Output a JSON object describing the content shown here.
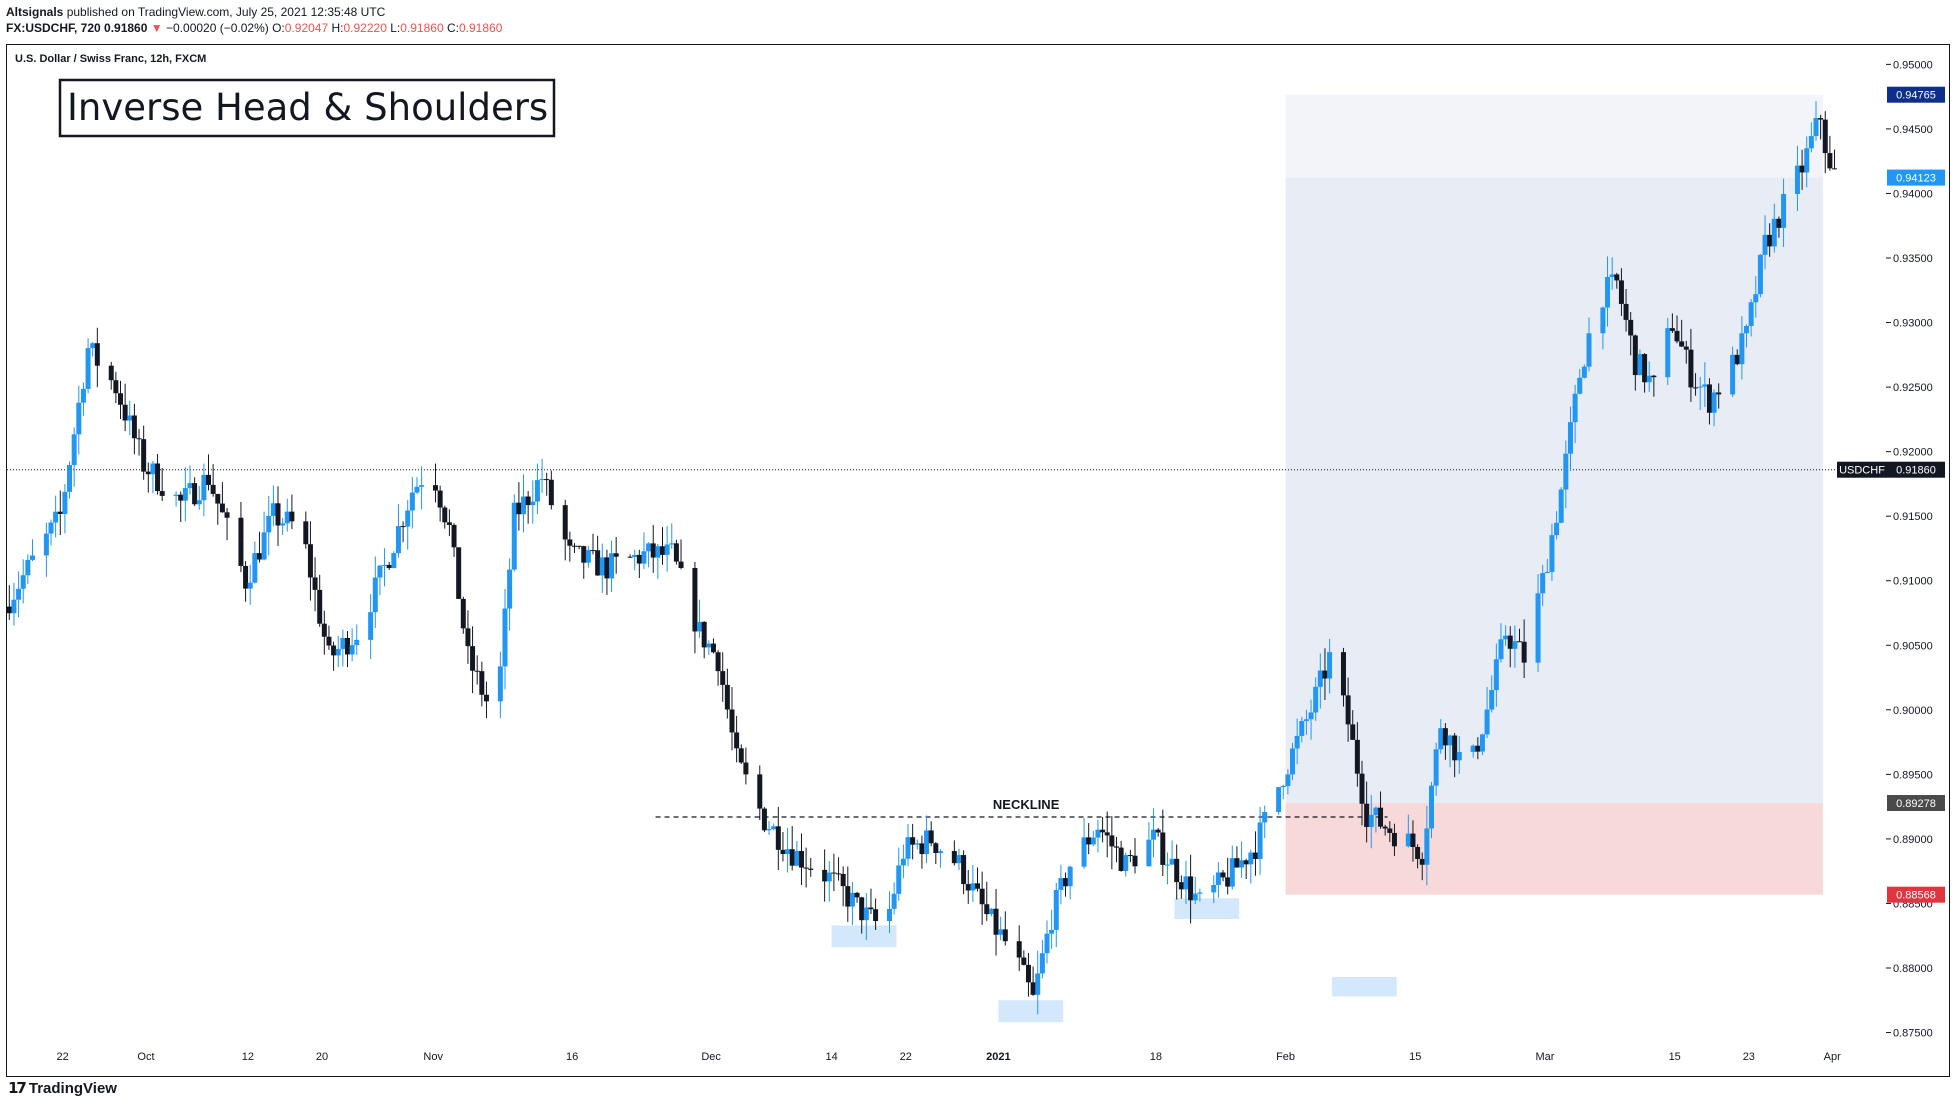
{
  "header": {
    "publisher": "Altsignals",
    "published_text": " published on TradingView.com, July 25, 2021 12:35:48 UTC",
    "symbol_line": {
      "symbol": "FX:USDCHF, 720",
      "last": "0.91860",
      "change": "−0.00020 (−0.02%)",
      "o_label": "O:",
      "o": "0.92047",
      "h_label": "H:",
      "h": "0.92220",
      "l_label": "L:",
      "l": "0.91860",
      "c_label": "C:",
      "c": "0.91860"
    }
  },
  "footer": {
    "brand": "TradingView"
  },
  "chart_data": {
    "type": "candlestick",
    "title": "U.S. Dollar / Swiss Franc, 12h, FXCM",
    "annotation_title": "Inverse Head & Shoulders",
    "neckline_label": "NECKLINE",
    "neckline_price": 0.8917,
    "ylim": [
      0.8745,
      0.9515
    ],
    "y_ticks": [
      "0.95000",
      "0.94500",
      "0.94000",
      "0.93500",
      "0.93000",
      "0.92500",
      "0.92000",
      "0.91500",
      "0.91000",
      "0.90500",
      "0.90000",
      "0.89500",
      "0.89000",
      "0.88500",
      "0.88000",
      "0.87500"
    ],
    "x_ticks": [
      {
        "label": "22",
        "date": "2020-09-22"
      },
      {
        "label": "Oct",
        "date": "2020-10-01",
        "bold": false
      },
      {
        "label": "12",
        "date": "2020-10-12"
      },
      {
        "label": "20",
        "date": "2020-10-20"
      },
      {
        "label": "Nov",
        "date": "2020-11-01"
      },
      {
        "label": "16",
        "date": "2020-11-16"
      },
      {
        "label": "Dec",
        "date": "2020-12-01"
      },
      {
        "label": "14",
        "date": "2020-12-14"
      },
      {
        "label": "22",
        "date": "2020-12-22"
      },
      {
        "label": "2021",
        "date": "2021-01-01",
        "bold": true
      },
      {
        "label": "18",
        "date": "2021-01-18"
      },
      {
        "label": "Feb",
        "date": "2021-02-01"
      },
      {
        "label": "15",
        "date": "2021-02-15"
      },
      {
        "label": "Mar",
        "date": "2021-03-01"
      },
      {
        "label": "15",
        "date": "2021-03-15"
      },
      {
        "label": "23",
        "date": "2021-03-23"
      },
      {
        "label": "Apr",
        "date": "2021-04-01"
      }
    ],
    "x_range": [
      "2020-09-16",
      "2021-04-04"
    ],
    "price_labels": {
      "target_high": "0.94765",
      "target": "0.94123",
      "current_symbol": "USDCHF",
      "current": "0.91860",
      "entry": "0.89278",
      "stop": "0.88568"
    },
    "position_box": {
      "start": "2021-02-01",
      "end": "2021-03-31",
      "entry": 0.89278,
      "stop": 0.88568,
      "target": 0.94123,
      "target_high": 0.94765
    },
    "highlights": [
      {
        "name": "left-shoulder",
        "start": "2020-12-14",
        "end": "2020-12-21",
        "low": 0.8816,
        "high": 0.8833
      },
      {
        "name": "head",
        "start": "2021-01-01",
        "end": "2021-01-08",
        "low": 0.8758,
        "high": 0.8775
      },
      {
        "name": "right-shoulder",
        "start": "2021-01-20",
        "end": "2021-01-27",
        "low": 0.8838,
        "high": 0.8854
      },
      {
        "name": "future-marker",
        "start": "2021-02-06",
        "end": "2021-02-13",
        "low": 0.8778,
        "high": 0.8793
      }
    ],
    "colors": {
      "up": "#2196f3",
      "down": "#131722",
      "target_zone": "#e8edf5",
      "target_upper_zone": "#f2f4f9",
      "stop_zone": "#f7d9da",
      "highlight": "#d4e8fb",
      "entry_label": "#4a4a4a",
      "stop_label": "#e0353f",
      "target_label": "#2196f3",
      "target_high_label": "#0d2f8c",
      "current_label": "#131722"
    },
    "price_path": [
      {
        "date": "2020-09-16",
        "price": 0.908
      },
      {
        "date": "2020-09-22",
        "price": 0.915
      },
      {
        "date": "2020-09-25",
        "price": 0.928
      },
      {
        "date": "2020-09-28",
        "price": 0.925
      },
      {
        "date": "2020-10-01",
        "price": 0.919
      },
      {
        "date": "2020-10-05",
        "price": 0.916
      },
      {
        "date": "2020-10-08",
        "price": 0.918
      },
      {
        "date": "2020-10-12",
        "price": 0.91
      },
      {
        "date": "2020-10-15",
        "price": 0.915
      },
      {
        "date": "2020-10-18",
        "price": 0.914
      },
      {
        "date": "2020-10-21",
        "price": 0.904
      },
      {
        "date": "2020-10-24",
        "price": 0.906
      },
      {
        "date": "2020-10-27",
        "price": 0.911
      },
      {
        "date": "2020-10-30",
        "price": 0.917
      },
      {
        "date": "2020-11-01",
        "price": 0.919
      },
      {
        "date": "2020-11-03",
        "price": 0.914
      },
      {
        "date": "2020-11-05",
        "price": 0.904
      },
      {
        "date": "2020-11-08",
        "price": 0.899
      },
      {
        "date": "2020-11-10",
        "price": 0.915
      },
      {
        "date": "2020-11-13",
        "price": 0.918
      },
      {
        "date": "2020-11-16",
        "price": 0.912
      },
      {
        "date": "2020-11-20",
        "price": 0.911
      },
      {
        "date": "2020-11-24",
        "price": 0.912
      },
      {
        "date": "2020-11-27",
        "price": 0.912
      },
      {
        "date": "2020-11-30",
        "price": 0.906
      },
      {
        "date": "2020-12-02",
        "price": 0.904
      },
      {
        "date": "2020-12-04",
        "price": 0.896
      },
      {
        "date": "2020-12-07",
        "price": 0.8915
      },
      {
        "date": "2020-12-10",
        "price": 0.889
      },
      {
        "date": "2020-12-14",
        "price": 0.887
      },
      {
        "date": "2020-12-18",
        "price": 0.884
      },
      {
        "date": "2020-12-20",
        "price": 0.883
      },
      {
        "date": "2020-12-22",
        "price": 0.889
      },
      {
        "date": "2020-12-25",
        "price": 0.89
      },
      {
        "date": "2020-12-28",
        "price": 0.888
      },
      {
        "date": "2020-12-31",
        "price": 0.884
      },
      {
        "date": "2021-01-03",
        "price": 0.881
      },
      {
        "date": "2021-01-05",
        "price": 0.8775
      },
      {
        "date": "2021-01-07",
        "price": 0.884
      },
      {
        "date": "2021-01-09",
        "price": 0.888
      },
      {
        "date": "2021-01-12",
        "price": 0.891
      },
      {
        "date": "2021-01-15",
        "price": 0.888
      },
      {
        "date": "2021-01-18",
        "price": 0.89
      },
      {
        "date": "2021-01-20",
        "price": 0.888
      },
      {
        "date": "2021-01-23",
        "price": 0.885
      },
      {
        "date": "2021-01-26",
        "price": 0.887
      },
      {
        "date": "2021-01-29",
        "price": 0.8895
      },
      {
        "date": "2021-02-01",
        "price": 0.895
      },
      {
        "date": "2021-02-04",
        "price": 0.9
      },
      {
        "date": "2021-02-06",
        "price": 0.904
      },
      {
        "date": "2021-02-08",
        "price": 0.899
      },
      {
        "date": "2021-02-10",
        "price": 0.892
      },
      {
        "date": "2021-02-13",
        "price": 0.8905
      },
      {
        "date": "2021-02-16",
        "price": 0.889
      },
      {
        "date": "2021-02-18",
        "price": 0.899
      },
      {
        "date": "2021-02-21",
        "price": 0.895
      },
      {
        "date": "2021-02-23",
        "price": 0.9
      },
      {
        "date": "2021-02-25",
        "price": 0.906
      },
      {
        "date": "2021-02-27",
        "price": 0.904
      },
      {
        "date": "2021-03-01",
        "price": 0.91
      },
      {
        "date": "2021-03-03",
        "price": 0.917
      },
      {
        "date": "2021-03-05",
        "price": 0.926
      },
      {
        "date": "2021-03-07",
        "price": 0.932
      },
      {
        "date": "2021-03-09",
        "price": 0.933
      },
      {
        "date": "2021-03-11",
        "price": 0.927
      },
      {
        "date": "2021-03-13",
        "price": 0.925
      },
      {
        "date": "2021-03-15",
        "price": 0.93
      },
      {
        "date": "2021-03-17",
        "price": 0.926
      },
      {
        "date": "2021-03-19",
        "price": 0.924
      },
      {
        "date": "2021-03-21",
        "price": 0.926
      },
      {
        "date": "2021-03-23",
        "price": 0.929
      },
      {
        "date": "2021-03-25",
        "price": 0.936
      },
      {
        "date": "2021-03-27",
        "price": 0.939
      },
      {
        "date": "2021-03-29",
        "price": 0.942
      },
      {
        "date": "2021-03-31",
        "price": 0.946
      },
      {
        "date": "2021-04-01",
        "price": 0.9415
      }
    ]
  }
}
